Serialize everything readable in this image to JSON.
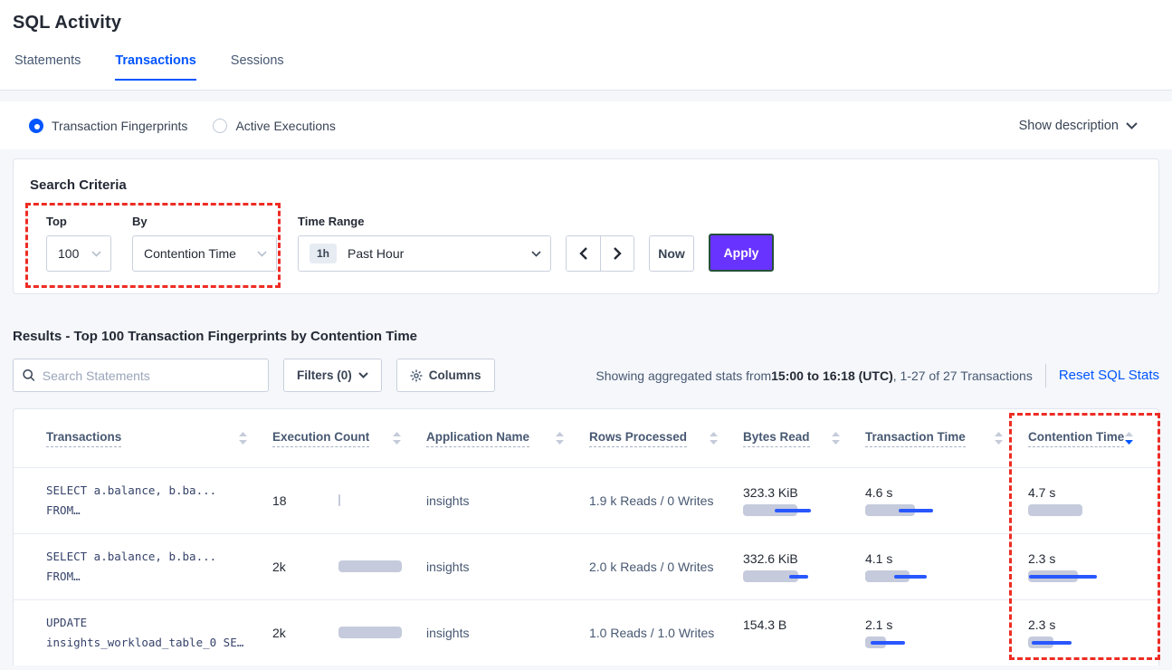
{
  "page": {
    "title": "SQL Activity"
  },
  "tabs": [
    {
      "label": "Statements",
      "active": false
    },
    {
      "label": "Transactions",
      "active": true
    },
    {
      "label": "Sessions",
      "active": false
    }
  ],
  "view_toggle": {
    "options": [
      {
        "label": "Transaction Fingerprints",
        "selected": true
      },
      {
        "label": "Active Executions",
        "selected": false
      }
    ],
    "show_description_label": "Show description"
  },
  "search_criteria": {
    "heading": "Search Criteria",
    "top": {
      "label": "Top",
      "value": "100"
    },
    "by": {
      "label": "By",
      "value": "Contention Time"
    },
    "time_range": {
      "label": "Time Range",
      "badge": "1h",
      "value": "Past Hour"
    },
    "now_button": "Now",
    "apply_button": "Apply"
  },
  "results": {
    "heading": "Results - Top 100 Transaction Fingerprints by Contention Time",
    "search_placeholder": "Search Statements",
    "filters_button": "Filters (0)",
    "columns_button": "Columns",
    "stats_prefix": "Showing aggregated stats from ",
    "stats_bold": "15:00 to 16:18 (UTC)",
    "stats_suffix": ", 1-27 of 27 Transactions",
    "reset_link": "Reset SQL Stats"
  },
  "table": {
    "headers": {
      "transactions": "Transactions",
      "execution_count": "Execution Count",
      "application_name": "Application Name",
      "rows_processed": "Rows Processed",
      "bytes_read": "Bytes Read",
      "transaction_time": "Transaction Time",
      "contention_time": "Contention Time"
    },
    "sorted_by": "Contention Time",
    "sort_direction": "desc",
    "rows": [
      {
        "sql1": "SELECT a.balance, b.ba...",
        "sql2": "FROM…",
        "exec_count": "18",
        "app": "insights",
        "rows_processed": "1.9 k Reads / 0 Writes",
        "bytes_read": "323.3 KiB",
        "txn_time": "4.6 s",
        "contention": "4.7 s",
        "bars": {
          "exec": {
            "bar": 2
          },
          "bytes": {
            "bar": 60,
            "line": [
              35,
              40
            ]
          },
          "txn": {
            "bar": 55,
            "line": [
              37,
              38
            ]
          },
          "cont": {
            "bar": 60
          }
        }
      },
      {
        "sql1": "SELECT a.balance, b.ba...",
        "sql2": "FROM…",
        "exec_count": "2k",
        "app": "insights",
        "rows_processed": "2.0 k Reads / 0 Writes",
        "bytes_read": "332.6 KiB",
        "txn_time": "4.1 s",
        "contention": "2.3 s",
        "bars": {
          "exec": {
            "bar": 70
          },
          "bytes": {
            "bar": 61,
            "line": [
              51,
              21
            ]
          },
          "txn": {
            "bar": 49,
            "line": [
              32,
              36
            ]
          },
          "cont": {
            "bar": 55,
            "line": [
              1,
              75
            ]
          }
        }
      },
      {
        "sql1": "UPDATE",
        "sql2": "insights_workload_table_0 SE…",
        "exec_count": "2k",
        "app": "insights",
        "rows_processed": "1.0 Reads / 1.0 Writes",
        "bytes_read": "154.3 B",
        "txn_time": "2.1 s",
        "contention": "2.3 s",
        "bars": {
          "exec": {
            "bar": 70
          },
          "bytes": {
            "bar": 0
          },
          "txn": {
            "bar": 23,
            "line": [
              6,
              38
            ]
          },
          "cont": {
            "bar": 28,
            "line": [
              4,
              44
            ]
          }
        }
      }
    ]
  },
  "annotations": {
    "color": "#ee2c24",
    "boxes": [
      {
        "target": "top-and-by-controls"
      },
      {
        "target": "contention-time-column"
      }
    ]
  },
  "colors": {
    "accent_blue": "#0055ff",
    "apply_purple": "#6933ff",
    "bar_gray": "#c5cbdc",
    "bar_blue": "#2957ff",
    "annotation_red": "#ee2c24"
  }
}
